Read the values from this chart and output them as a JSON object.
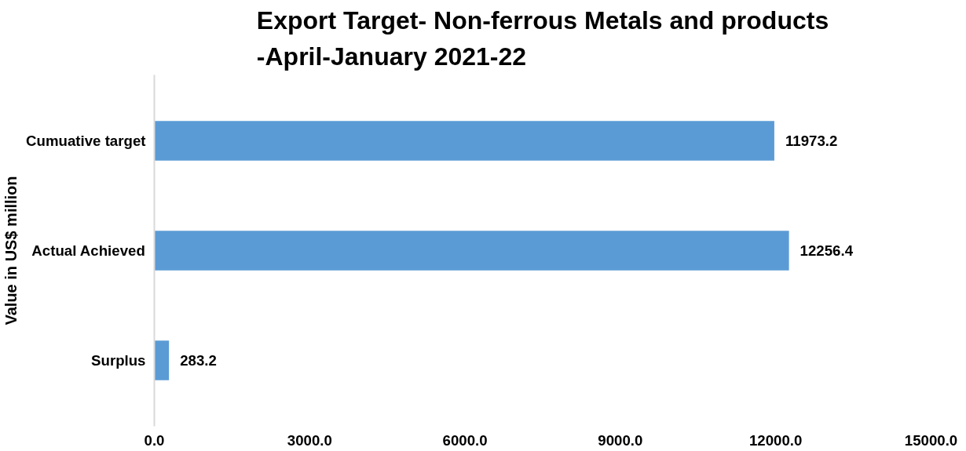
{
  "chart_data": {
    "type": "bar",
    "orientation": "horizontal",
    "title": "Export Target- Non-ferrous Metals and products -April-January 2021-22",
    "ylabel": "Value in US$ million",
    "categories": [
      "Cumuative target",
      "Actual Achieved",
      "Surplus"
    ],
    "values": [
      11973.2,
      12256.4,
      283.2
    ],
    "color": "#5b9bd5",
    "data_labels": true,
    "xlim": [
      0,
      15000
    ],
    "xticks": [
      {
        "value": 0,
        "label": "0.0"
      },
      {
        "value": 3000,
        "label": "3000.0"
      },
      {
        "value": 6000,
        "label": "6000.0"
      },
      {
        "value": 9000,
        "label": "9000.0"
      },
      {
        "value": 12000,
        "label": "12000.0"
      },
      {
        "value": 15000,
        "label": "15000.0"
      }
    ]
  }
}
